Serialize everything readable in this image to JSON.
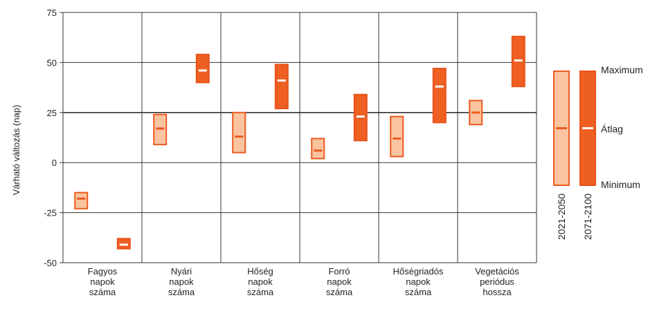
{
  "chart_data": {
    "type": "range-bar",
    "ylabel": "Várható változás (nap)",
    "ylim": [
      -50,
      75
    ],
    "yticks": [
      75,
      50,
      25,
      0,
      -25,
      -50
    ],
    "ytick_labels": [
      "75",
      "50",
      "25",
      "0",
      "-25",
      "-50"
    ],
    "grid": true,
    "categories": [
      [
        "Fagyos",
        "napok",
        "száma"
      ],
      [
        "Nyári",
        "napok",
        "száma"
      ],
      [
        "Hőség",
        "napok",
        "száma"
      ],
      [
        "Forró",
        "napok",
        "száma"
      ],
      [
        "Hőségriadós",
        "napok",
        "száma"
      ],
      [
        "Vegetációs",
        "periódus",
        "hossza"
      ]
    ],
    "series": [
      {
        "name": "2021-2050",
        "color": "#f9c49f",
        "edge": "#ec5a1f",
        "mean_color": "#ec5a1f",
        "min": [
          -23,
          9,
          5,
          2,
          3,
          19
        ],
        "mean": [
          -18,
          17,
          13,
          6,
          12,
          25
        ],
        "max": [
          -15,
          24,
          25,
          12,
          23,
          31
        ]
      },
      {
        "name": "2071-2100",
        "color": "#ee5f22",
        "edge": "#e8531a",
        "mean_color": "#ffffff",
        "min": [
          -43,
          40,
          27,
          11,
          20,
          38
        ],
        "mean": [
          -41,
          46,
          41,
          23,
          38,
          51
        ],
        "max": [
          -38,
          54,
          49,
          34,
          47,
          63
        ]
      }
    ],
    "legend": {
      "placement": "right",
      "labels": [
        "Maximum",
        "Átlag",
        "Minimum"
      ]
    }
  }
}
